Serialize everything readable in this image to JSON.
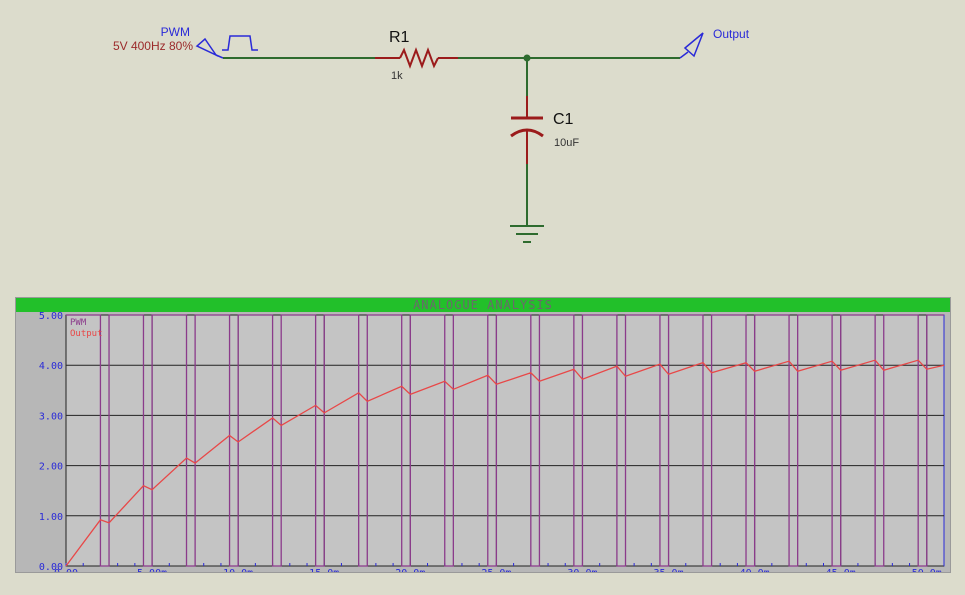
{
  "schematic": {
    "pwm_source": {
      "name": "PWM",
      "params": "5V 400Hz 80%"
    },
    "resistor": {
      "ref": "R1",
      "value": "1k"
    },
    "capacitor": {
      "ref": "C1",
      "value": "10uF"
    },
    "output_terminal": {
      "label": "Output"
    },
    "colors": {
      "wire": "#2e6b2e",
      "component": "#9b1b1b",
      "terminal": "#2a2ad8",
      "param_text": "#9b2a2a"
    }
  },
  "graph": {
    "title": "ANALOGUE ANALYSIS",
    "legend": [
      "PWM",
      "Output"
    ]
  },
  "chart_data": {
    "type": "line",
    "title": "ANALOGUE ANALYSIS",
    "xlabel": "",
    "ylabel": "",
    "xlim": [
      0,
      51
    ],
    "ylim": [
      0,
      5
    ],
    "x_ticks": [
      "0.00",
      "5.00m",
      "10.0m",
      "15.0m",
      "20.0m",
      "25.0m",
      "30.0m",
      "35.0m",
      "40.0m",
      "45.0m",
      "50.0m"
    ],
    "y_ticks": [
      "0.00",
      "1.00",
      "2.00",
      "3.00",
      "4.00",
      "5.00"
    ],
    "grid": true,
    "series": [
      {
        "name": "PWM",
        "color": "#8b3b8b",
        "params": {
          "period_ms": 2.5,
          "duty": 0.8,
          "high": 5,
          "low": 0
        }
      },
      {
        "name": "Output",
        "color": "#e84848",
        "x": [
          0,
          2.0,
          2.5,
          4.5,
          5.0,
          7.0,
          7.5,
          9.5,
          10.0,
          12.0,
          12.5,
          14.5,
          15.0,
          17.0,
          17.5,
          19.5,
          20.0,
          22.0,
          22.5,
          24.5,
          25.0,
          27.0,
          27.5,
          29.5,
          30.0,
          32.0,
          32.5,
          34.5,
          35.0,
          37.0,
          37.5,
          39.5,
          40.0,
          42.0,
          42.5,
          44.5,
          45.0,
          47.0,
          47.5,
          49.5,
          50.0,
          51.0
        ],
        "y": [
          0,
          0.92,
          0.86,
          1.6,
          1.52,
          2.15,
          2.05,
          2.6,
          2.47,
          2.95,
          2.8,
          3.2,
          3.05,
          3.45,
          3.28,
          3.58,
          3.42,
          3.68,
          3.52,
          3.8,
          3.62,
          3.85,
          3.68,
          3.92,
          3.72,
          3.98,
          3.78,
          4.02,
          3.82,
          4.05,
          3.85,
          4.05,
          3.88,
          4.08,
          3.88,
          4.08,
          3.9,
          4.1,
          3.9,
          4.1,
          3.92,
          4.0
        ]
      }
    ]
  }
}
